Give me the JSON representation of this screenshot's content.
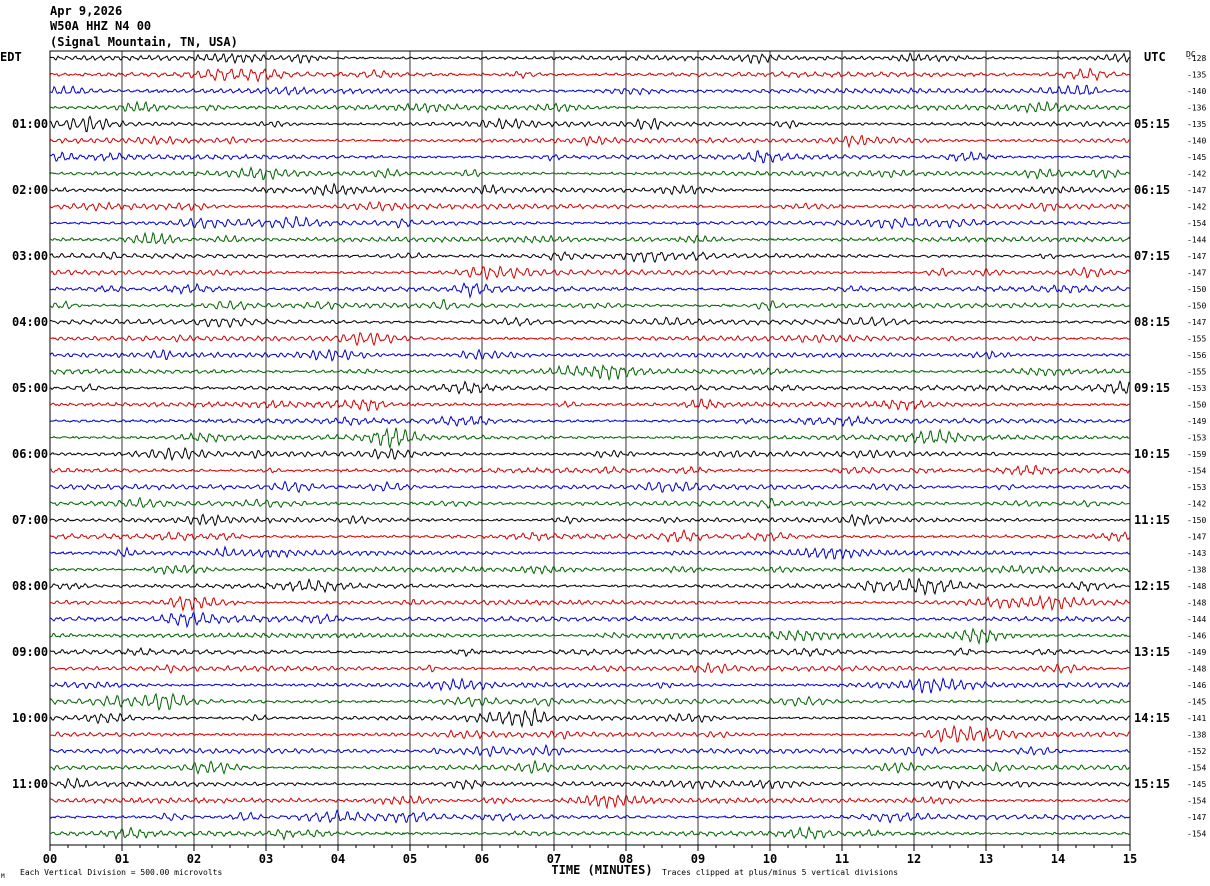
{
  "header": {
    "date": "Apr 9,2026",
    "station": "W50A HHZ N4 00",
    "location": "(Signal Mountain, TN, USA)"
  },
  "chart_data": {
    "type": "line",
    "chart_kind": "helicorder",
    "left_axis_label": "EDT",
    "right_axis_label": "UTC",
    "dc_header": "DC",
    "xlabel": "TIME (MINUTES)",
    "x_ticks": [
      "00",
      "01",
      "02",
      "03",
      "04",
      "05",
      "06",
      "07",
      "08",
      "09",
      "10",
      "11",
      "12",
      "13",
      "14",
      "15"
    ],
    "xlim": [
      0,
      15
    ],
    "vertical_gridlines": true,
    "trace_colors": [
      "#000000",
      "#d40000",
      "#0000c8",
      "#006400"
    ],
    "traces_per_hour": 4,
    "trace_count": 48,
    "left_hour_labels": [
      "01:00",
      "02:00",
      "03:00",
      "04:00",
      "05:00",
      "06:00",
      "07:00",
      "08:00",
      "09:00",
      "10:00",
      "11:00"
    ],
    "right_hour_labels": [
      "05:15",
      "06:15",
      "07:15",
      "08:15",
      "09:15",
      "10:15",
      "11:15",
      "12:15",
      "13:15",
      "14:15",
      "15:15"
    ],
    "hour_label_first_trace": 4,
    "dc_offsets": [
      -128,
      -135,
      -140,
      -136,
      -135,
      -140,
      -145,
      -142,
      -147,
      -142,
      -154,
      -144,
      -147,
      -147,
      -150,
      -150,
      -147,
      -155,
      -156,
      -155,
      -153,
      -150,
      -149,
      -153,
      -159,
      -154,
      -153,
      -142,
      -150,
      -147,
      -143,
      -138,
      -148,
      -148,
      -144,
      -146,
      -149,
      -148,
      -146,
      -145,
      -141,
      -138,
      -152,
      -154,
      -145,
      -154,
      -147,
      -154
    ],
    "footer_scale": "Each Vertical Division =  500.00 microvolts",
    "footer_clip": "Traces clipped at plus/minus 5 vertical divisions",
    "footer_mark": "M"
  }
}
